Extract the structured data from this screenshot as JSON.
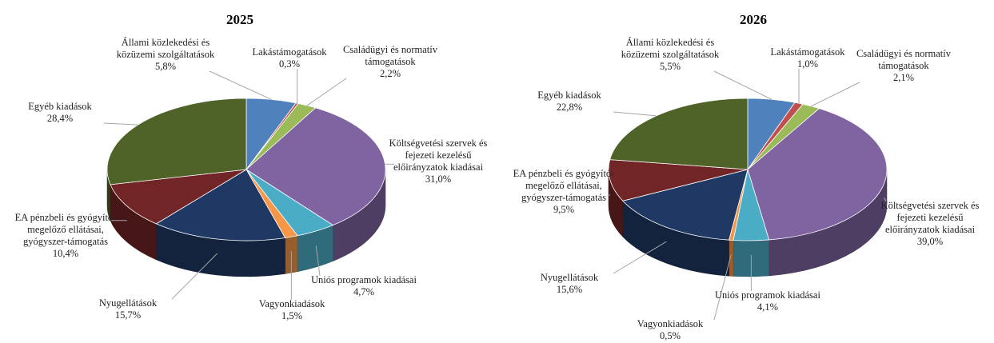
{
  "chart_data": [
    {
      "type": "pie",
      "title": "2025",
      "categories": [
        "Állami közlekedési és közüzemi szolgáltatások",
        "Lakástámogatások",
        "Családügyi és normatív támogatások",
        "Költségvetési szervek és fejezeti kezelésű előirányzatok kiadásai",
        "Uniós programok kiadásai",
        "Vagyonkiadások",
        "Nyugellátások",
        "EA pénzbeli és gyógyító-megelőző ellátásai, gyógyszer-támogatás",
        "Egyéb kiadások"
      ],
      "values": [
        5.8,
        0.3,
        2.2,
        31.0,
        4.7,
        1.5,
        15.7,
        10.4,
        28.4
      ],
      "value_labels": [
        "5,8%",
        "0,3%",
        "2,2%",
        "31,0%",
        "4,7%",
        "1,5%",
        "15,7%",
        "10,4%",
        "28,4%"
      ],
      "colors": [
        "#4f81bd",
        "#c0504d",
        "#9bbb59",
        "#8064a2",
        "#4bacc6",
        "#f79646",
        "#1f3864",
        "#722526",
        "#4f6228"
      ]
    },
    {
      "type": "pie",
      "title": "2026",
      "categories": [
        "Állami közlekedési és közüzemi szolgáltatások",
        "Lakástámogatások",
        "Családügyi és normatív támogatások",
        "Költségvetési szervek és fejezeti kezelésű előirányzatok kiadásai",
        "Uniós programok kiadásai",
        "Vagyonkiadások",
        "Nyugellátások",
        "EA pénzbeli és gyógyító-megelőző ellátásai, gyógyszer-támogatás",
        "Egyéb kiadások"
      ],
      "values": [
        5.5,
        1.0,
        2.1,
        39.0,
        4.1,
        0.5,
        15.6,
        9.5,
        22.8
      ],
      "value_labels": [
        "5,5%",
        "1,0%",
        "2,1%",
        "39,0%",
        "4,1%",
        "0,5%",
        "15,6%",
        "9,5%",
        "22,8%"
      ],
      "colors": [
        "#4f81bd",
        "#c0504d",
        "#9bbb59",
        "#8064a2",
        "#4bacc6",
        "#f79646",
        "#1f3864",
        "#722526",
        "#4f6228"
      ]
    }
  ]
}
